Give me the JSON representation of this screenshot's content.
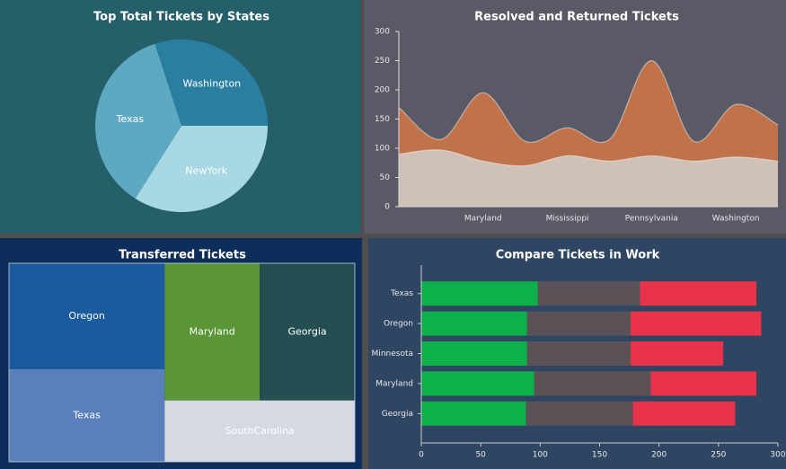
{
  "chart_data": [
    {
      "type": "pie",
      "title": "Top Total Tickets by States",
      "categories": [
        "Washington",
        "NewYork",
        "Texas"
      ],
      "values": [
        30,
        34,
        36
      ],
      "colors": [
        "#2a7fa0",
        "#a8d8e4",
        "#5ea9c2"
      ]
    },
    {
      "type": "area",
      "title": "Resolved and Returned Tickets",
      "categories": [
        null,
        null,
        "Maryland",
        null,
        "Mississippi",
        null,
        "Pennsylvania",
        null,
        "Washington",
        null
      ],
      "series": [
        {
          "color": "#c0734a",
          "values": [
            170,
            115,
            195,
            112,
            135,
            115,
            250,
            112,
            175,
            140
          ]
        },
        {
          "color": "#cfc0b8",
          "values": [
            90,
            97,
            78,
            70,
            87,
            78,
            87,
            78,
            85,
            78
          ]
        }
      ],
      "ylim": [
        0,
        300
      ],
      "yticks": [
        0,
        50,
        100,
        150,
        200,
        250,
        300
      ]
    },
    {
      "type": "treemap",
      "title": "Transferred Tickets",
      "categories": [
        "Oregon",
        "Texas",
        "Maryland",
        "Georgia",
        "SouthCarolina"
      ],
      "values": [
        24,
        21,
        19,
        19,
        17
      ],
      "colors": [
        "#1a5a9e",
        "#5b7fba",
        "#5a9536",
        "#244f52",
        "#d5dae2"
      ]
    },
    {
      "type": "bar",
      "title": "Compare Tickets in Work",
      "horizontal": true,
      "stacked": true,
      "categories": [
        "Texas",
        "Oregon",
        "Minnesota",
        "Maryland",
        "Georgia"
      ],
      "series": [
        {
          "color": "#0db04a",
          "values": [
            98,
            89,
            89,
            95,
            88
          ]
        },
        {
          "color": "#5a5257",
          "values": [
            86,
            87,
            87,
            98,
            90
          ]
        },
        {
          "color": "#e8334a",
          "values": [
            98,
            110,
            78,
            89,
            86
          ]
        }
      ],
      "xlim": [
        0,
        300
      ],
      "xticks": [
        0,
        50,
        100,
        150,
        200,
        250,
        300
      ]
    }
  ]
}
